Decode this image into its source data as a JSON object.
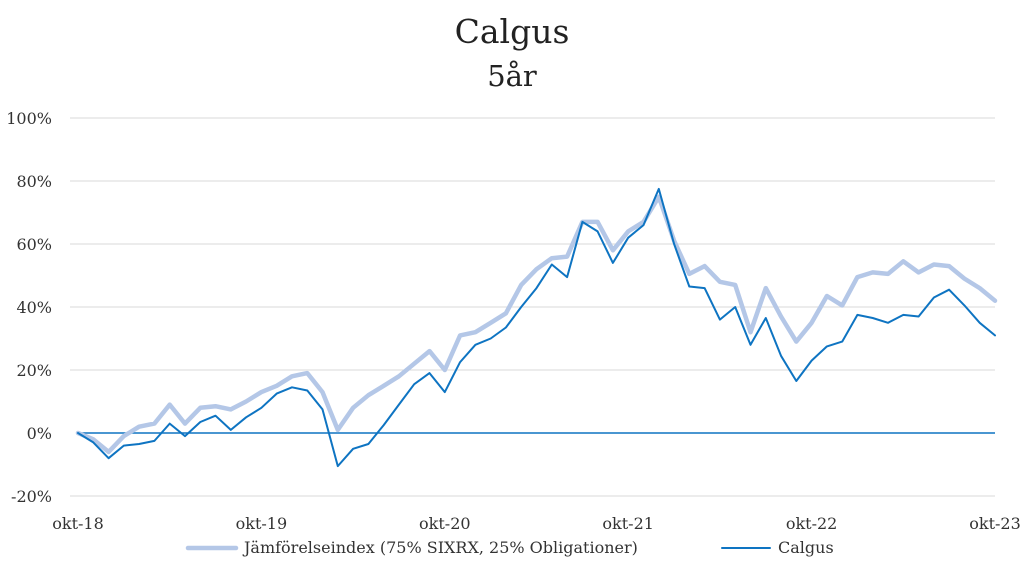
{
  "chart_data": {
    "type": "line",
    "title": "Calgus",
    "subtitle": "5år",
    "xlabel": "",
    "ylabel": "",
    "y_unit": "%",
    "ylim": [
      -20,
      100
    ],
    "yticks": [
      -20,
      0,
      20,
      40,
      60,
      80,
      100
    ],
    "ytick_labels": [
      "-20%",
      "0%",
      "20%",
      "40%",
      "60%",
      "80%",
      "100%"
    ],
    "xticks": [
      0,
      12,
      24,
      36,
      48,
      60
    ],
    "xtick_labels": [
      "okt-18",
      "okt-19",
      "okt-20",
      "okt-21",
      "okt-22",
      "okt-23"
    ],
    "x_unit": "months since okt-18",
    "grid": true,
    "legend_position": "bottom",
    "series": [
      {
        "name": "Jämförelseindex (75% SIXRX, 25% Obligationer)",
        "color": "#b4c7e7",
        "line_width": "thick",
        "values": [
          0,
          -2,
          -6,
          -1,
          2,
          3,
          9,
          3,
          8,
          8.5,
          7.5,
          10,
          13,
          15,
          18,
          19,
          13,
          1,
          8,
          12,
          15,
          18,
          22,
          26,
          20,
          31,
          32,
          35,
          38,
          47,
          52,
          55.5,
          56,
          67,
          67,
          58,
          64,
          67,
          75,
          61,
          50.5,
          53,
          48,
          47,
          32,
          46,
          37,
          29,
          35,
          43.5,
          40.5,
          49.5,
          51,
          50.5,
          54.5,
          51,
          53.5,
          53,
          49,
          46,
          42
        ]
      },
      {
        "name": "Calgus",
        "color": "#0e74c2",
        "line_width": "thin",
        "values": [
          0,
          -3,
          -8,
          -4,
          -3.5,
          -2.5,
          3,
          -1,
          3.5,
          5.5,
          1,
          5,
          8,
          12.5,
          14.5,
          13.5,
          7.5,
          -10.5,
          -5,
          -3.5,
          2.5,
          9,
          15.5,
          19,
          13,
          22.5,
          28,
          30,
          33.5,
          40,
          46,
          53.5,
          49.5,
          67,
          64,
          54,
          62,
          66,
          77.5,
          60,
          46.5,
          46,
          36,
          40,
          28,
          36.5,
          24.5,
          16.5,
          23,
          27.5,
          29,
          37.5,
          36.5,
          35,
          37.5,
          37,
          43,
          45.5,
          40.5,
          35,
          31
        ]
      }
    ]
  }
}
